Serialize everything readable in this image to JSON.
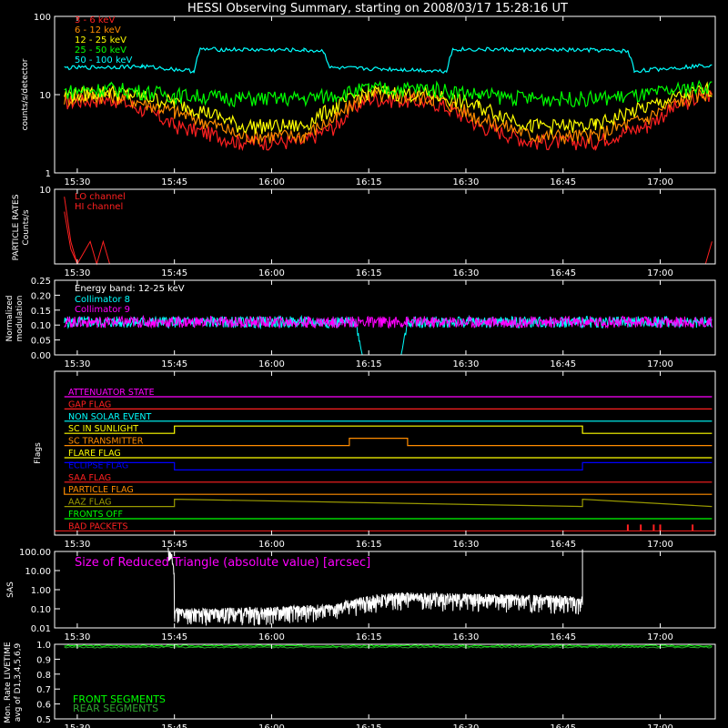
{
  "title": "HESSI Observing Summary, starting on 2008/03/17 15:28:16 UT",
  "time_ticks": [
    "15:30",
    "15:45",
    "16:00",
    "16:15",
    "16:30",
    "16:45",
    "17:00"
  ],
  "colors": {
    "red": "#ff2020",
    "orange": "#ff8c00",
    "yellow": "#ffff00",
    "green": "#00ff00",
    "cyan": "#00ffff",
    "magenta": "#ff00ff",
    "blue": "#0000ff",
    "white": "#ffffff"
  },
  "chart_data": [
    {
      "id": "counts",
      "type": "line",
      "ylabel": "counts/s/detector",
      "yscale": "log",
      "ylim": [
        1,
        100
      ],
      "y_ticks": [
        "1",
        "10",
        "100"
      ],
      "legend": [
        "3 - 6 keV",
        "6 - 12 keV",
        "12 - 25 keV",
        "25 - 50 keV",
        "50 - 100 keV"
      ],
      "series": [
        {
          "name": "3 - 6 keV",
          "x": [
            "15:28",
            "15:35",
            "15:45",
            "15:55",
            "16:05",
            "16:10",
            "16:15",
            "16:25",
            "16:32",
            "16:40",
            "16:50",
            "16:58",
            "17:04",
            "17:08"
          ],
          "values": [
            8,
            9,
            4,
            2.5,
            2.5,
            4,
            9,
            8,
            4,
            2.5,
            2.5,
            4,
            8,
            10
          ]
        },
        {
          "name": "6 - 12 keV",
          "x": [
            "15:28",
            "15:35",
            "15:45",
            "15:55",
            "16:05",
            "16:10",
            "16:15",
            "16:25",
            "16:32",
            "16:40",
            "16:50",
            "16:58",
            "17:04",
            "17:08"
          ],
          "values": [
            9,
            10,
            6,
            3,
            3,
            5,
            10,
            9,
            5,
            3,
            3,
            5,
            9,
            11
          ]
        },
        {
          "name": "12 - 25 keV",
          "x": [
            "15:28",
            "15:35",
            "15:45",
            "15:55",
            "16:05",
            "16:10",
            "16:15",
            "16:25",
            "16:32",
            "16:40",
            "16:50",
            "16:58",
            "17:04",
            "17:08"
          ],
          "values": [
            10,
            11,
            8,
            4,
            4,
            7,
            11,
            10,
            7,
            4,
            4,
            7,
            10,
            12
          ]
        },
        {
          "name": "25 - 50 keV",
          "x": [
            "15:28",
            "15:35",
            "15:45",
            "15:55",
            "16:05",
            "16:10",
            "16:15",
            "16:25",
            "16:32",
            "16:40",
            "16:50",
            "16:58",
            "17:04",
            "17:08"
          ],
          "values": [
            11,
            12,
            10,
            9,
            9,
            10,
            12,
            12,
            10,
            9,
            9,
            10,
            12,
            13
          ]
        },
        {
          "name": "50 - 100 keV",
          "x": [
            "15:28",
            "15:40",
            "15:48",
            "15:49",
            "16:05",
            "16:08",
            "16:09",
            "16:20",
            "16:27",
            "16:28",
            "16:50",
            "16:55",
            "16:56",
            "17:08"
          ],
          "values": [
            22,
            23,
            20,
            38,
            37,
            36,
            22,
            21,
            20,
            38,
            37,
            36,
            20,
            24
          ]
        }
      ]
    },
    {
      "id": "particle",
      "type": "line",
      "ylabel": "PARTICLE RATES",
      "ylabel2": "Counts/s",
      "ylim": [
        0,
        10
      ],
      "y_ticks": [
        "10"
      ],
      "legend": [
        "LO channel",
        "HI channel"
      ],
      "series": [
        {
          "name": "LO channel",
          "x": [
            "15:28",
            "15:29",
            "15:30",
            "15:32",
            "15:33",
            "15:34",
            "15:35"
          ],
          "values": [
            7,
            2,
            0,
            3,
            0,
            3,
            0
          ]
        },
        {
          "name": "HI channel",
          "x": [
            "15:28",
            "15:29",
            "15:30",
            "17:07",
            "17:08"
          ],
          "values": [
            9,
            3,
            0,
            0,
            3
          ]
        }
      ]
    },
    {
      "id": "modulation",
      "type": "line",
      "ylabel": "Normalized",
      "ylabel2": "modulation",
      "ylim": [
        0,
        0.25
      ],
      "y_ticks": [
        "0.00",
        "0.05",
        "0.10",
        "0.15",
        "0.20",
        "0.25"
      ],
      "annotation": "Energy band: 12-25 keV",
      "legend": [
        "Collimator 8",
        "Collimator 9"
      ],
      "series": [
        {
          "name": "Collimator 8",
          "x": [
            "15:28",
            "16:13",
            "16:14",
            "16:20",
            "16:21",
            "17:08"
          ],
          "values": [
            0.11,
            0.11,
            0.0,
            0.0,
            0.11,
            0.11
          ]
        },
        {
          "name": "Collimator 9",
          "x": [
            "15:28",
            "17:08"
          ],
          "values": [
            0.11,
            0.11
          ]
        }
      ]
    },
    {
      "id": "flags",
      "type": "line",
      "ylabel": "Flags",
      "series": [
        {
          "name": "ATTENUATOR STATE",
          "color": "magenta",
          "x": [
            "15:28",
            "17:08"
          ],
          "values": [
            0,
            0
          ]
        },
        {
          "name": "GAP FLAG",
          "color": "red",
          "x": [
            "15:28",
            "17:08"
          ],
          "values": [
            0,
            0
          ]
        },
        {
          "name": "NON SOLAR EVENT",
          "color": "cyan",
          "x": [
            "15:28",
            "17:08"
          ],
          "values": [
            0,
            0
          ]
        },
        {
          "name": "SC IN SUNLIGHT",
          "color": "yellow",
          "x": [
            "15:28",
            "15:45",
            "15:45",
            "16:48",
            "16:48",
            "17:08"
          ],
          "values": [
            0,
            0,
            1,
            1,
            0,
            0
          ]
        },
        {
          "name": "SC TRANSMITTER",
          "color": "orange",
          "x": [
            "15:28",
            "16:12",
            "16:12",
            "16:21",
            "16:21",
            "17:08"
          ],
          "values": [
            0,
            0,
            1,
            1,
            0,
            0
          ]
        },
        {
          "name": "FLARE FLAG",
          "color": "yellow",
          "x": [
            "15:28",
            "17:08"
          ],
          "values": [
            0,
            0
          ]
        },
        {
          "name": "ECLIPSE FLAG",
          "color": "blue",
          "x": [
            "15:28",
            "15:45",
            "15:45",
            "16:48",
            "16:48",
            "17:08"
          ],
          "values": [
            1,
            1,
            0,
            0,
            1,
            1
          ]
        },
        {
          "name": "SAA FLAG",
          "color": "red",
          "x": [
            "15:28",
            "17:08"
          ],
          "values": [
            0,
            0
          ]
        },
        {
          "name": "PARTICLE FLAG",
          "color": "orange",
          "x": [
            "15:28",
            "15:28",
            "17:08"
          ],
          "values": [
            1,
            0,
            0
          ]
        },
        {
          "name": "AAZ FLAG",
          "color": "olive",
          "x": [
            "15:28",
            "15:45",
            "15:45",
            "16:48",
            "16:48",
            "17:08"
          ],
          "values": [
            0,
            0,
            1,
            0,
            1,
            0
          ]
        },
        {
          "name": "FRONTS OFF",
          "color": "green",
          "x": [
            "15:28",
            "17:08"
          ],
          "values": [
            0,
            0
          ]
        },
        {
          "name": "BAD PACKETS",
          "color": "red",
          "x": [
            "16:55",
            "16:57",
            "16:59",
            "17:00",
            "17:05"
          ],
          "values": [
            1,
            1,
            1,
            1,
            1
          ]
        }
      ]
    },
    {
      "id": "sas",
      "type": "line",
      "ylabel": "SAS",
      "yscale": "log",
      "ylim": [
        0.01,
        100
      ],
      "y_ticks": [
        "0.01",
        "0.10",
        "1.00",
        "10.00",
        "100.00"
      ],
      "annotation": "Size of Reduced Triangle (absolute value) [arcsec]",
      "series": [
        {
          "name": "SAS",
          "x": [
            "15:44",
            "15:45",
            "15:46",
            "15:50",
            "16:00",
            "16:10",
            "16:16",
            "16:20",
            "16:40",
            "16:48",
            "16:48"
          ],
          "values": [
            100,
            0.08,
            0.06,
            0.06,
            0.07,
            0.1,
            0.3,
            0.4,
            0.3,
            0.25,
            100
          ]
        }
      ]
    },
    {
      "id": "livetime",
      "type": "line",
      "ylabel": "Mon. Rate LIVETIME",
      "ylabel2": "avg of D1,3,4,5,6,9",
      "ylim": [
        0.5,
        1.0
      ],
      "y_ticks": [
        "0.5",
        "0.6",
        "0.7",
        "0.8",
        "0.9",
        "1.0"
      ],
      "legend": [
        "FRONT SEGMENTS",
        "REAR SEGMENTS"
      ],
      "series": [
        {
          "name": "FRONT SEGMENTS",
          "x": [
            "15:28",
            "17:08"
          ],
          "values": [
            0.99,
            0.99
          ]
        },
        {
          "name": "REAR SEGMENTS",
          "x": [
            "15:28",
            "17:08"
          ],
          "values": [
            0.98,
            0.98
          ]
        }
      ]
    }
  ]
}
